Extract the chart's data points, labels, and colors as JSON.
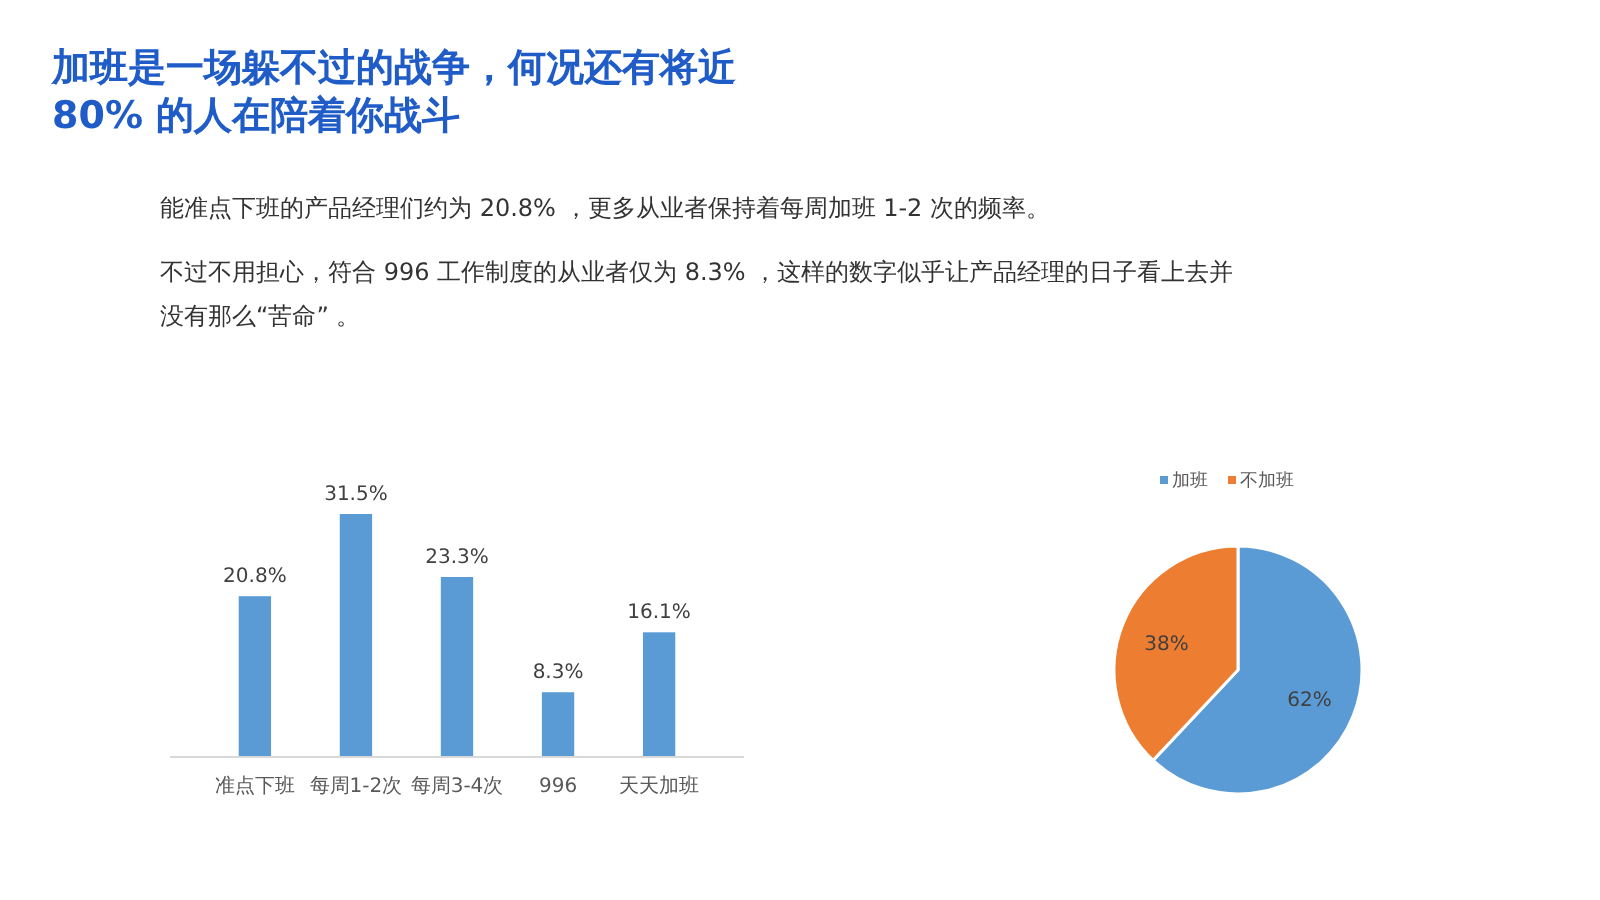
{
  "chart_data": [
    {
      "type": "bar",
      "title": "加班是一场躲不过的战争，何况还有将近 80% 的人在陪着你战斗",
      "annotations": [
        "能准点下班的产品经理们约为  20.8% ，更多从业者保持着每周加班  1-2 次的频率。",
        "不过不用担心，符合  996 工作制度的从业者仅为  8.3% ，这样的数字似乎让产品经理的日子看上去并没有那么“苦命” 。"
      ],
      "categories": [
        "准点下班",
        "每周1-2次",
        "每周3-4次",
        "996",
        "天天加班"
      ],
      "values": [
        20.8,
        31.5,
        23.3,
        8.3,
        16.1
      ],
      "color": "#5b9bd5",
      "value_labels": [
        "20.8%",
        "31.5%",
        "23.3%",
        "8.3%",
        "16.1%"
      ]
    },
    {
      "type": "pie",
      "categories": [
        "加班",
        "不加班"
      ],
      "values": [
        62,
        38
      ],
      "colors": [
        "#5b9bd5",
        "#ed7d31"
      ],
      "value_labels": [
        "62%",
        "38%"
      ],
      "legend": "top"
    }
  ]
}
